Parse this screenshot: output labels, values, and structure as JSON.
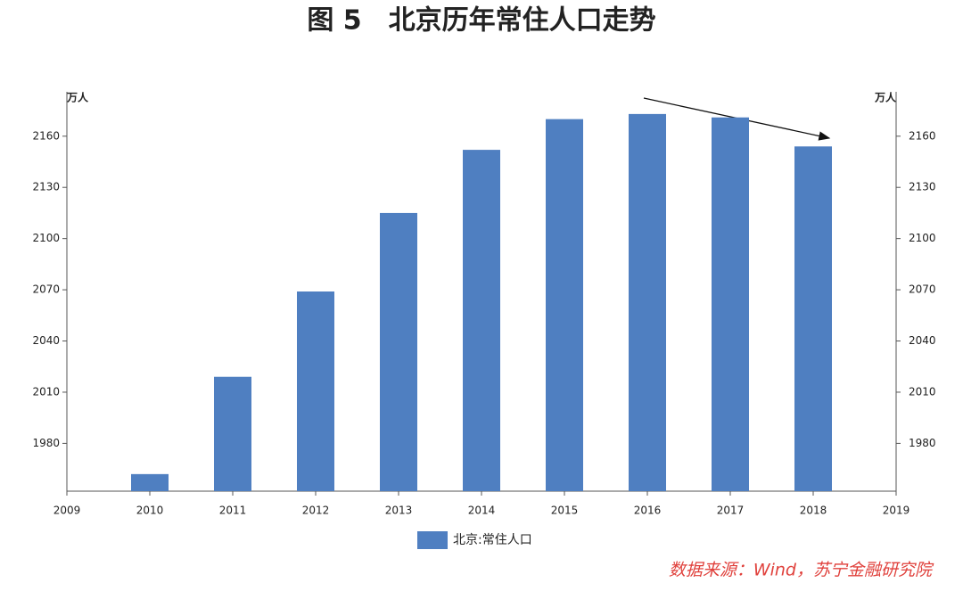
{
  "chart_data": {
    "type": "bar",
    "title": "图 5　北京历年常住人口走势",
    "y_unit": "万人",
    "y2_unit": "万人",
    "x": [
      2010,
      2011,
      2012,
      2013,
      2014,
      2015,
      2016,
      2017,
      2018
    ],
    "series": [
      {
        "name": "北京:常住人口",
        "color": "#4f7fc1",
        "values": [
          1962,
          2019,
          2069,
          2115,
          2152,
          2170,
          2173,
          2171,
          2154
        ]
      }
    ],
    "xlim": [
      2009,
      2019
    ],
    "xticks": [
      2009,
      2010,
      2011,
      2012,
      2013,
      2014,
      2015,
      2016,
      2017,
      2018,
      2019
    ],
    "ylim": [
      1952,
      2186
    ],
    "yticks": [
      1980,
      2010,
      2040,
      2070,
      2100,
      2130,
      2160
    ],
    "y2lim": [
      1952,
      2186
    ],
    "y2ticks": [
      1980,
      2010,
      2040,
      2070,
      2100,
      2130,
      2160
    ],
    "source": "数据来源：Wind，苏宁金融研究院"
  }
}
